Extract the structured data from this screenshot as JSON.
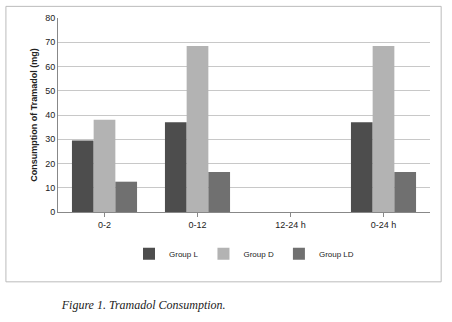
{
  "chart_data": {
    "type": "bar",
    "title": "Figure 1. Tramadol Consumption.",
    "y_label": "Consumption of Tramadol (mg)",
    "categories": [
      "0-2",
      "0-12",
      "12-24 h",
      "0-24 h"
    ],
    "series": [
      {
        "name": "Group L",
        "color": "#4d4d4d",
        "values": [
          29.5,
          37,
          null,
          37
        ]
      },
      {
        "name": "Group D",
        "color": "#b3b3b3",
        "values": [
          38,
          68.5,
          null,
          68.5
        ]
      },
      {
        "name": "Group LD",
        "color": "#707070",
        "values": [
          12.5,
          16.5,
          null,
          16.5
        ]
      }
    ],
    "ylim": [
      0,
      80
    ],
    "yticks": [
      0,
      10,
      20,
      30,
      40,
      50,
      60,
      70,
      80
    ],
    "grid": true,
    "legend": "bottom"
  }
}
